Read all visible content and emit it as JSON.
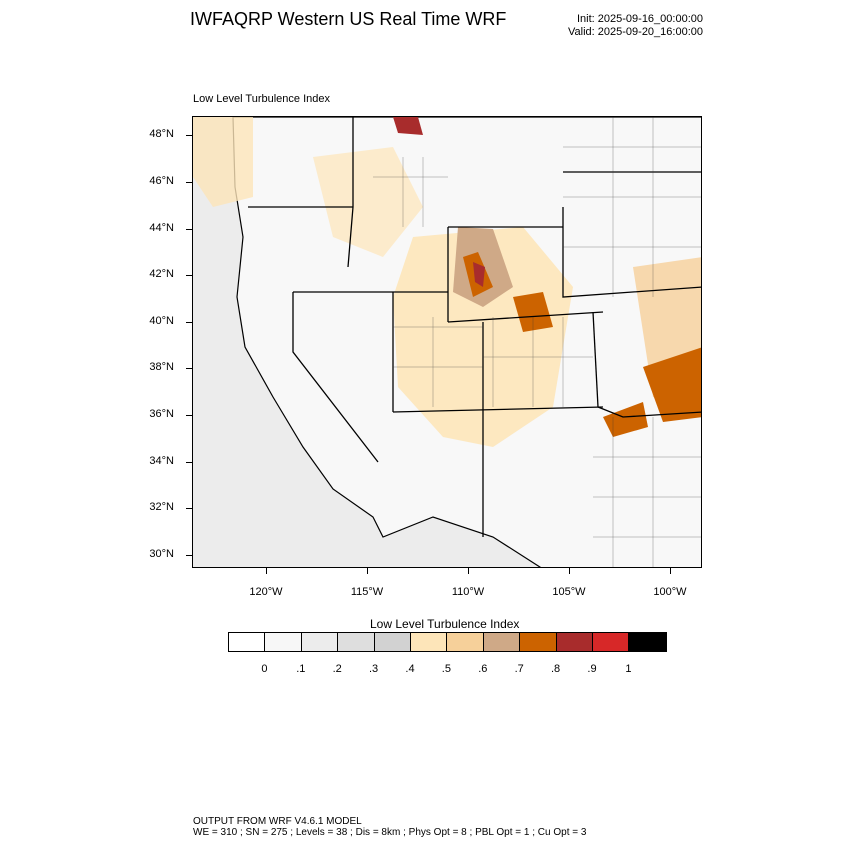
{
  "header": {
    "title": "IWFAQRP Western US Real Time WRF",
    "init": "Init: 2025-09-16_00:00:00",
    "valid": "Valid: 2025-09-20_16:00:00"
  },
  "map": {
    "field_label": "Low Level Turbulence Index",
    "lat_labels": [
      "48°N",
      "46°N",
      "44°N",
      "42°N",
      "40°N",
      "38°N",
      "36°N",
      "34°N",
      "32°N",
      "30°N"
    ],
    "lon_labels": [
      "120°W",
      "115°W",
      "110°W",
      "105°W",
      "100°W"
    ]
  },
  "legend": {
    "title": "Low Level Turbulence Index",
    "ticks": [
      "0",
      ".1",
      ".2",
      ".3",
      ".4",
      ".5",
      ".6",
      ".7",
      ".8",
      ".9",
      "1"
    ],
    "colors": [
      "#ffffff",
      "#f7f7f7",
      "#ececec",
      "#dedede",
      "#d2d2d2",
      "#fde5b9",
      "#f6d09a",
      "#cfa987",
      "#cc6300",
      "#a82c2c",
      "#d72828",
      "#000000"
    ]
  },
  "footer": {
    "line1": "OUTPUT FROM WRF V4.6.1 MODEL",
    "line2": "WE = 310 ; SN = 275 ; Levels = 38 ; Dis = 8km ; Phys Opt = 8 ; PBL Opt = 1 ; Cu Opt = 3"
  }
}
